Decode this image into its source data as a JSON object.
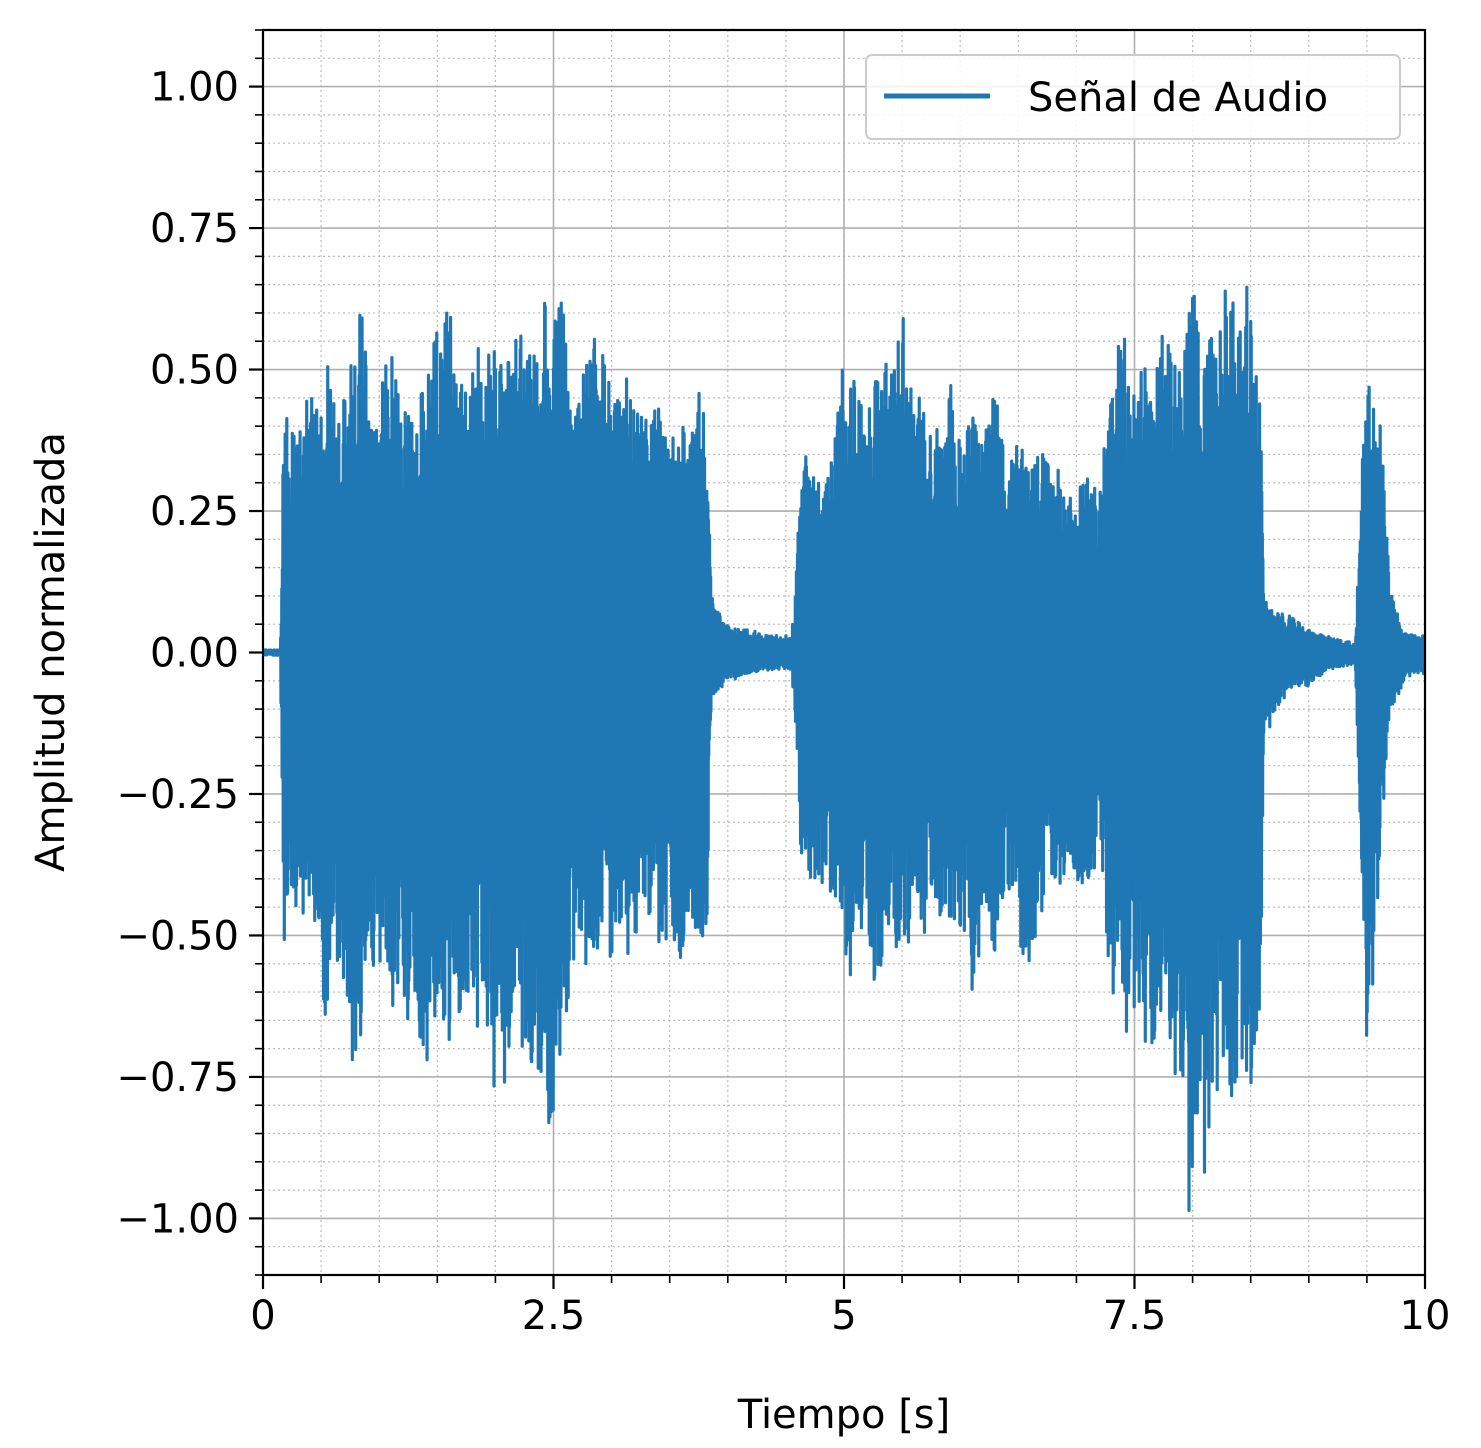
{
  "chart_data": {
    "type": "line",
    "title": "",
    "xlabel": "Tiempo [s]",
    "ylabel": "Amplitud normalizada",
    "xlim": [
      0,
      10
    ],
    "ylim": [
      -1.1,
      1.1
    ],
    "xticks": [
      0,
      2.5,
      5,
      7.5,
      10
    ],
    "xtick_labels": [
      "0",
      "2.5",
      "5",
      "7.5",
      "10"
    ],
    "yticks": [
      1.0,
      0.75,
      0.5,
      0.25,
      0.0,
      -0.25,
      -0.5,
      -0.75,
      -1.0
    ],
    "ytick_labels": [
      "1.00",
      "0.75",
      "0.50",
      "0.25",
      "0.00",
      "−0.25",
      "−0.50",
      "−0.75",
      "−1.00"
    ],
    "grid": true,
    "minor_grid": true,
    "legend": {
      "placement": "top-right",
      "entries": [
        "Señal de Audio"
      ]
    },
    "series": [
      {
        "name": "Señal de Audio",
        "color": "#1f77b4",
        "envelope": {
          "t": [
            0.0,
            0.15,
            0.18,
            0.2,
            0.3,
            0.4,
            0.5,
            0.55,
            0.6,
            0.7,
            0.8,
            0.85,
            0.9,
            1.0,
            1.1,
            1.2,
            1.3,
            1.4,
            1.5,
            1.6,
            1.7,
            1.8,
            1.9,
            2.0,
            2.1,
            2.2,
            2.3,
            2.4,
            2.48,
            2.55,
            2.65,
            2.75,
            2.85,
            2.95,
            3.05,
            3.15,
            3.25,
            3.35,
            3.45,
            3.55,
            3.65,
            3.75,
            3.82,
            3.86,
            3.9,
            4.0,
            4.2,
            4.4,
            4.55,
            4.6,
            4.64,
            4.7,
            4.8,
            4.9,
            5.0,
            5.1,
            5.2,
            5.3,
            5.4,
            5.5,
            5.6,
            5.7,
            5.8,
            5.9,
            6.0,
            6.1,
            6.2,
            6.3,
            6.4,
            6.5,
            6.6,
            6.7,
            6.8,
            6.9,
            7.0,
            7.1,
            7.2,
            7.3,
            7.4,
            7.5,
            7.6,
            7.7,
            7.8,
            7.9,
            7.97,
            8.05,
            8.1,
            8.15,
            8.2,
            8.3,
            8.4,
            8.5,
            8.57,
            8.62,
            8.7,
            8.8,
            9.0,
            9.2,
            9.4,
            9.5,
            9.55,
            9.58,
            9.62,
            9.7,
            9.8,
            9.9,
            10.0
          ],
          "upper": [
            0.005,
            0.005,
            0.47,
            0.42,
            0.43,
            0.45,
            0.5,
            0.61,
            0.45,
            0.5,
            0.58,
            0.68,
            0.45,
            0.47,
            0.55,
            0.45,
            0.47,
            0.55,
            0.57,
            0.65,
            0.5,
            0.6,
            0.52,
            0.58,
            0.55,
            0.58,
            0.57,
            0.65,
            0.58,
            0.68,
            0.48,
            0.5,
            0.58,
            0.52,
            0.45,
            0.52,
            0.42,
            0.48,
            0.42,
            0.44,
            0.38,
            0.49,
            0.38,
            0.1,
            0.08,
            0.05,
            0.04,
            0.03,
            0.03,
            0.2,
            0.37,
            0.38,
            0.3,
            0.38,
            0.55,
            0.5,
            0.43,
            0.58,
            0.55,
            0.62,
            0.43,
            0.48,
            0.4,
            0.52,
            0.38,
            0.45,
            0.43,
            0.52,
            0.35,
            0.37,
            0.36,
            0.4,
            0.33,
            0.32,
            0.29,
            0.31,
            0.28,
            0.5,
            0.57,
            0.48,
            0.52,
            0.55,
            0.58,
            0.55,
            0.68,
            0.62,
            0.55,
            0.63,
            0.64,
            0.65,
            0.63,
            0.66,
            0.58,
            0.1,
            0.09,
            0.07,
            0.04,
            0.03,
            0.015,
            0.55,
            0.5,
            0.4,
            0.42,
            0.12,
            0.04,
            0.03,
            0.03
          ],
          "lower": [
            -0.005,
            -0.005,
            -0.63,
            -0.48,
            -0.47,
            -0.45,
            -0.55,
            -0.89,
            -0.52,
            -0.65,
            -0.81,
            -0.67,
            -0.52,
            -0.62,
            -0.65,
            -0.6,
            -0.72,
            -0.74,
            -0.65,
            -0.78,
            -0.7,
            -0.7,
            -0.64,
            -0.8,
            -0.75,
            -0.7,
            -0.73,
            -0.8,
            -0.9,
            -0.72,
            -0.6,
            -0.55,
            -0.58,
            -0.56,
            -0.53,
            -0.58,
            -0.45,
            -0.55,
            -0.52,
            -0.58,
            -0.5,
            -0.58,
            -0.54,
            -0.1,
            -0.08,
            -0.05,
            -0.04,
            -0.03,
            -0.03,
            -0.2,
            -0.42,
            -0.44,
            -0.4,
            -0.47,
            -0.55,
            -0.6,
            -0.52,
            -0.63,
            -0.5,
            -0.62,
            -0.45,
            -0.5,
            -0.44,
            -0.53,
            -0.48,
            -0.6,
            -0.5,
            -0.55,
            -0.45,
            -0.52,
            -0.55,
            -0.48,
            -0.45,
            -0.47,
            -0.42,
            -0.45,
            -0.4,
            -0.6,
            -0.66,
            -0.72,
            -0.7,
            -0.72,
            -0.75,
            -0.8,
            -1.0,
            -0.86,
            -0.97,
            -0.84,
            -0.82,
            -0.8,
            -0.82,
            -0.8,
            -0.75,
            -0.15,
            -0.12,
            -0.08,
            -0.06,
            -0.03,
            -0.02,
            -0.71,
            -0.6,
            -0.45,
            -0.4,
            -0.12,
            -0.06,
            -0.04,
            -0.04
          ]
        }
      }
    ]
  }
}
